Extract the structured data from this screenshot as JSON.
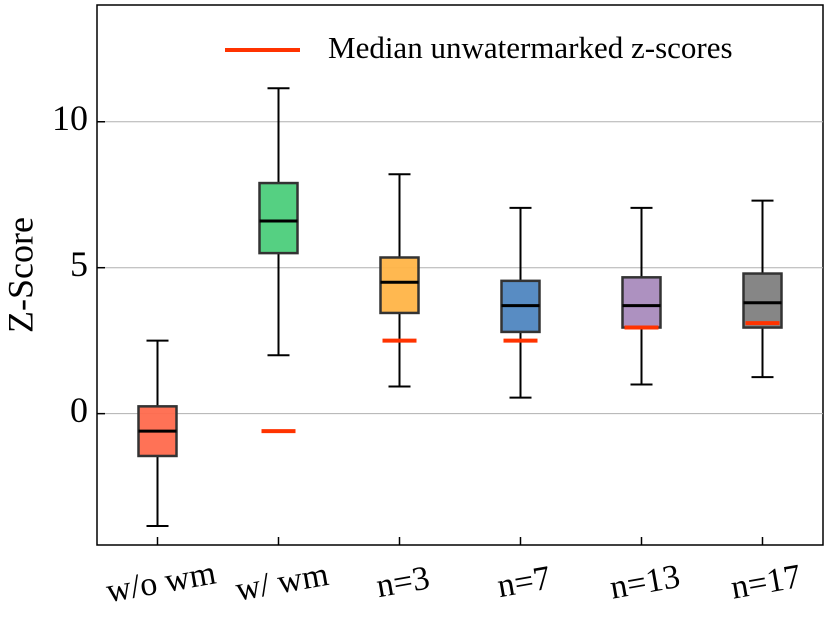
{
  "chart_data": {
    "type": "box",
    "y_label": "Z-Score",
    "categories": [
      "w/o wm",
      "w/ wm",
      "n=3",
      "n=7",
      "n=13",
      "n=17"
    ],
    "boxes": [
      {
        "low": -3.85,
        "q1": -1.45,
        "median": -0.6,
        "q3": 0.25,
        "high": 2.5,
        "color": "#ff6a4d"
      },
      {
        "low": 2.0,
        "q1": 5.5,
        "median": 6.6,
        "q3": 7.9,
        "high": 11.15,
        "color": "#4ccd7b"
      },
      {
        "low": 0.93,
        "q1": 3.45,
        "median": 4.5,
        "q3": 5.35,
        "high": 8.2,
        "color": "#ffb447"
      },
      {
        "low": 0.55,
        "q1": 2.8,
        "median": 3.7,
        "q3": 4.55,
        "high": 7.05,
        "color": "#4f86c0"
      },
      {
        "low": 1.0,
        "q1": 2.95,
        "median": 3.7,
        "q3": 4.67,
        "high": 7.05,
        "color": "#a98bbd"
      },
      {
        "low": 1.25,
        "q1": 2.95,
        "median": 3.8,
        "q3": 4.8,
        "high": 7.3,
        "color": "#808080"
      }
    ],
    "reference": {
      "name": "Median unwatermarked z-scores",
      "color": "#ff3300",
      "values": [
        null,
        -0.6,
        2.5,
        2.5,
        2.95,
        3.1
      ]
    },
    "ylim": [
      -4.5,
      14
    ],
    "yticks": [
      0,
      5,
      10
    ],
    "grid": true,
    "legend": "upper right"
  }
}
